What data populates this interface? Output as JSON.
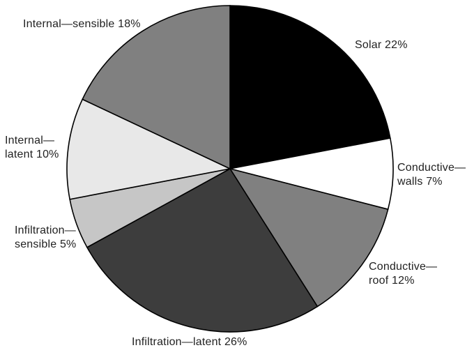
{
  "figure": {
    "background": "#ffffff",
    "text_color": "#222222"
  },
  "chart_data": {
    "type": "pie",
    "categories": [
      "Solar",
      "Conductive—walls",
      "Conductive—roof",
      "Infiltration—latent",
      "Infiltration—sensible",
      "Internal—latent",
      "Internal—sensible"
    ],
    "values": [
      22,
      7,
      12,
      26,
      5,
      10,
      18
    ],
    "slices": [
      {
        "id": "solar",
        "name": "Solar",
        "value": 22,
        "color": "#000000",
        "label": "Solar 22%"
      },
      {
        "id": "conductive-walls",
        "name": "Conductive—walls",
        "value": 7,
        "color": "#ffffff",
        "label": "Conductive—\nwalls 7%"
      },
      {
        "id": "conductive-roof",
        "name": "Conductive—roof",
        "value": 12,
        "color": "#808080",
        "label": "Conductive—\nroof 12%"
      },
      {
        "id": "infiltration-latent",
        "name": "Infiltration—latent",
        "value": 26,
        "color": "#3d3d3d",
        "label": "Infiltration—latent 26%"
      },
      {
        "id": "infiltration-sensible",
        "name": "Infiltration—sensible",
        "value": 5,
        "color": "#c6c6c6",
        "label": "Infiltration—\nsensible 5%"
      },
      {
        "id": "internal-latent",
        "name": "Internal—latent",
        "value": 10,
        "color": "#e8e8e8",
        "label": "Internal—\nlatent 10%"
      },
      {
        "id": "internal-sensible",
        "name": "Internal—sensible",
        "value": 18,
        "color": "#808080",
        "label": "Internal—sensible 18%"
      }
    ],
    "start_angle_deg": 0,
    "direction": "clockwise",
    "outline_color": "#000000",
    "legend_position": "none",
    "labels_position": "outside"
  }
}
